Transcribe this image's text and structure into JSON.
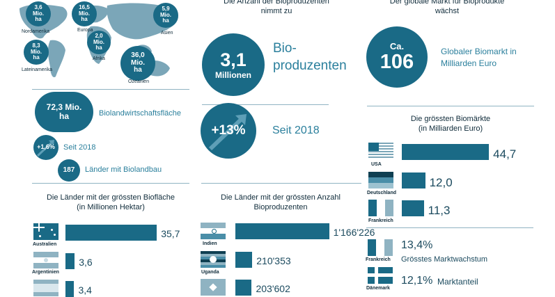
{
  "colors": {
    "accent": "#1a6a86",
    "label": "#2a7f9c",
    "text": "#0f2b3a"
  },
  "map": {
    "regions": [
      {
        "id": "nordamerika",
        "value": "3,6\nMio.\nha",
        "name": "Nordamerika"
      },
      {
        "id": "europa",
        "value": "16,5\nMio.\nha",
        "name": "Europa"
      },
      {
        "id": "asien",
        "value": "5,9\nMio.\nha",
        "name": "Asien"
      },
      {
        "id": "lateinamerika",
        "value": "8,3\nMio.\nha",
        "name": "Lateinamerika"
      },
      {
        "id": "afrika",
        "value": "2,0\nMio.\nha",
        "name": "Afrika"
      },
      {
        "id": "ozeanien",
        "value": "36,0\nMio.\nha",
        "name": "Ozeanien"
      }
    ]
  },
  "producers": {
    "heading": "Die Anzahl der Bioproduzenten\nnimmt zu",
    "count_value": "3,1",
    "count_unit": "Millionen",
    "count_label": "Bio-\nproduzenten",
    "growth_value": "+13%",
    "growth_label": "Seit 2018"
  },
  "market": {
    "heading": "Der globale Markt für Bioprodukte\nwächst",
    "prefix": "Ca.",
    "value": "106",
    "label": "Globaler Biomarkt in\nMilliarden Euro"
  },
  "area": {
    "value": "72,3 Mio.\nha",
    "label": "Biolandwirtschaftsfläche",
    "growth_value": "+1,6%",
    "growth_label": "Seit 2018",
    "countries_value": "187",
    "countries_label": "Länder mit Biolandbau"
  },
  "growth": {
    "top_value": "13,4%",
    "top_label": "Grösstes Marktwachstum",
    "top_country": "Frankreich",
    "share_value": "12,1%",
    "share_label": "Marktanteil",
    "share_country": "Dänemark"
  },
  "chart_data": [
    {
      "type": "bar",
      "title": "Die grössten Biomärkte\n(in Milliarden Euro)",
      "categories": [
        "USA",
        "Deutschland",
        "Frankreich"
      ],
      "values": [
        44.7,
        12.0,
        11.3
      ],
      "value_labels": [
        "44,7",
        "12,0",
        "11,3"
      ],
      "xlim": [
        0,
        50
      ]
    },
    {
      "type": "bar",
      "title": "Die Länder mit der grössten Biofläche\n(in Millionen Hektar)",
      "categories": [
        "Australien",
        "Argentinien",
        ""
      ],
      "values": [
        35.7,
        3.6,
        3.4
      ],
      "value_labels": [
        "35,7",
        "3,6",
        "3,4"
      ],
      "xlim": [
        0,
        40
      ]
    },
    {
      "type": "bar",
      "title": "Die Länder mit der grössten Anzahl\nBioproduzenten",
      "categories": [
        "Indien",
        "Uganda",
        ""
      ],
      "values": [
        1166226,
        210353,
        203602
      ],
      "value_labels": [
        "1'166'226",
        "210'353",
        "203'602"
      ],
      "xlim": [
        0,
        1300000
      ]
    }
  ]
}
